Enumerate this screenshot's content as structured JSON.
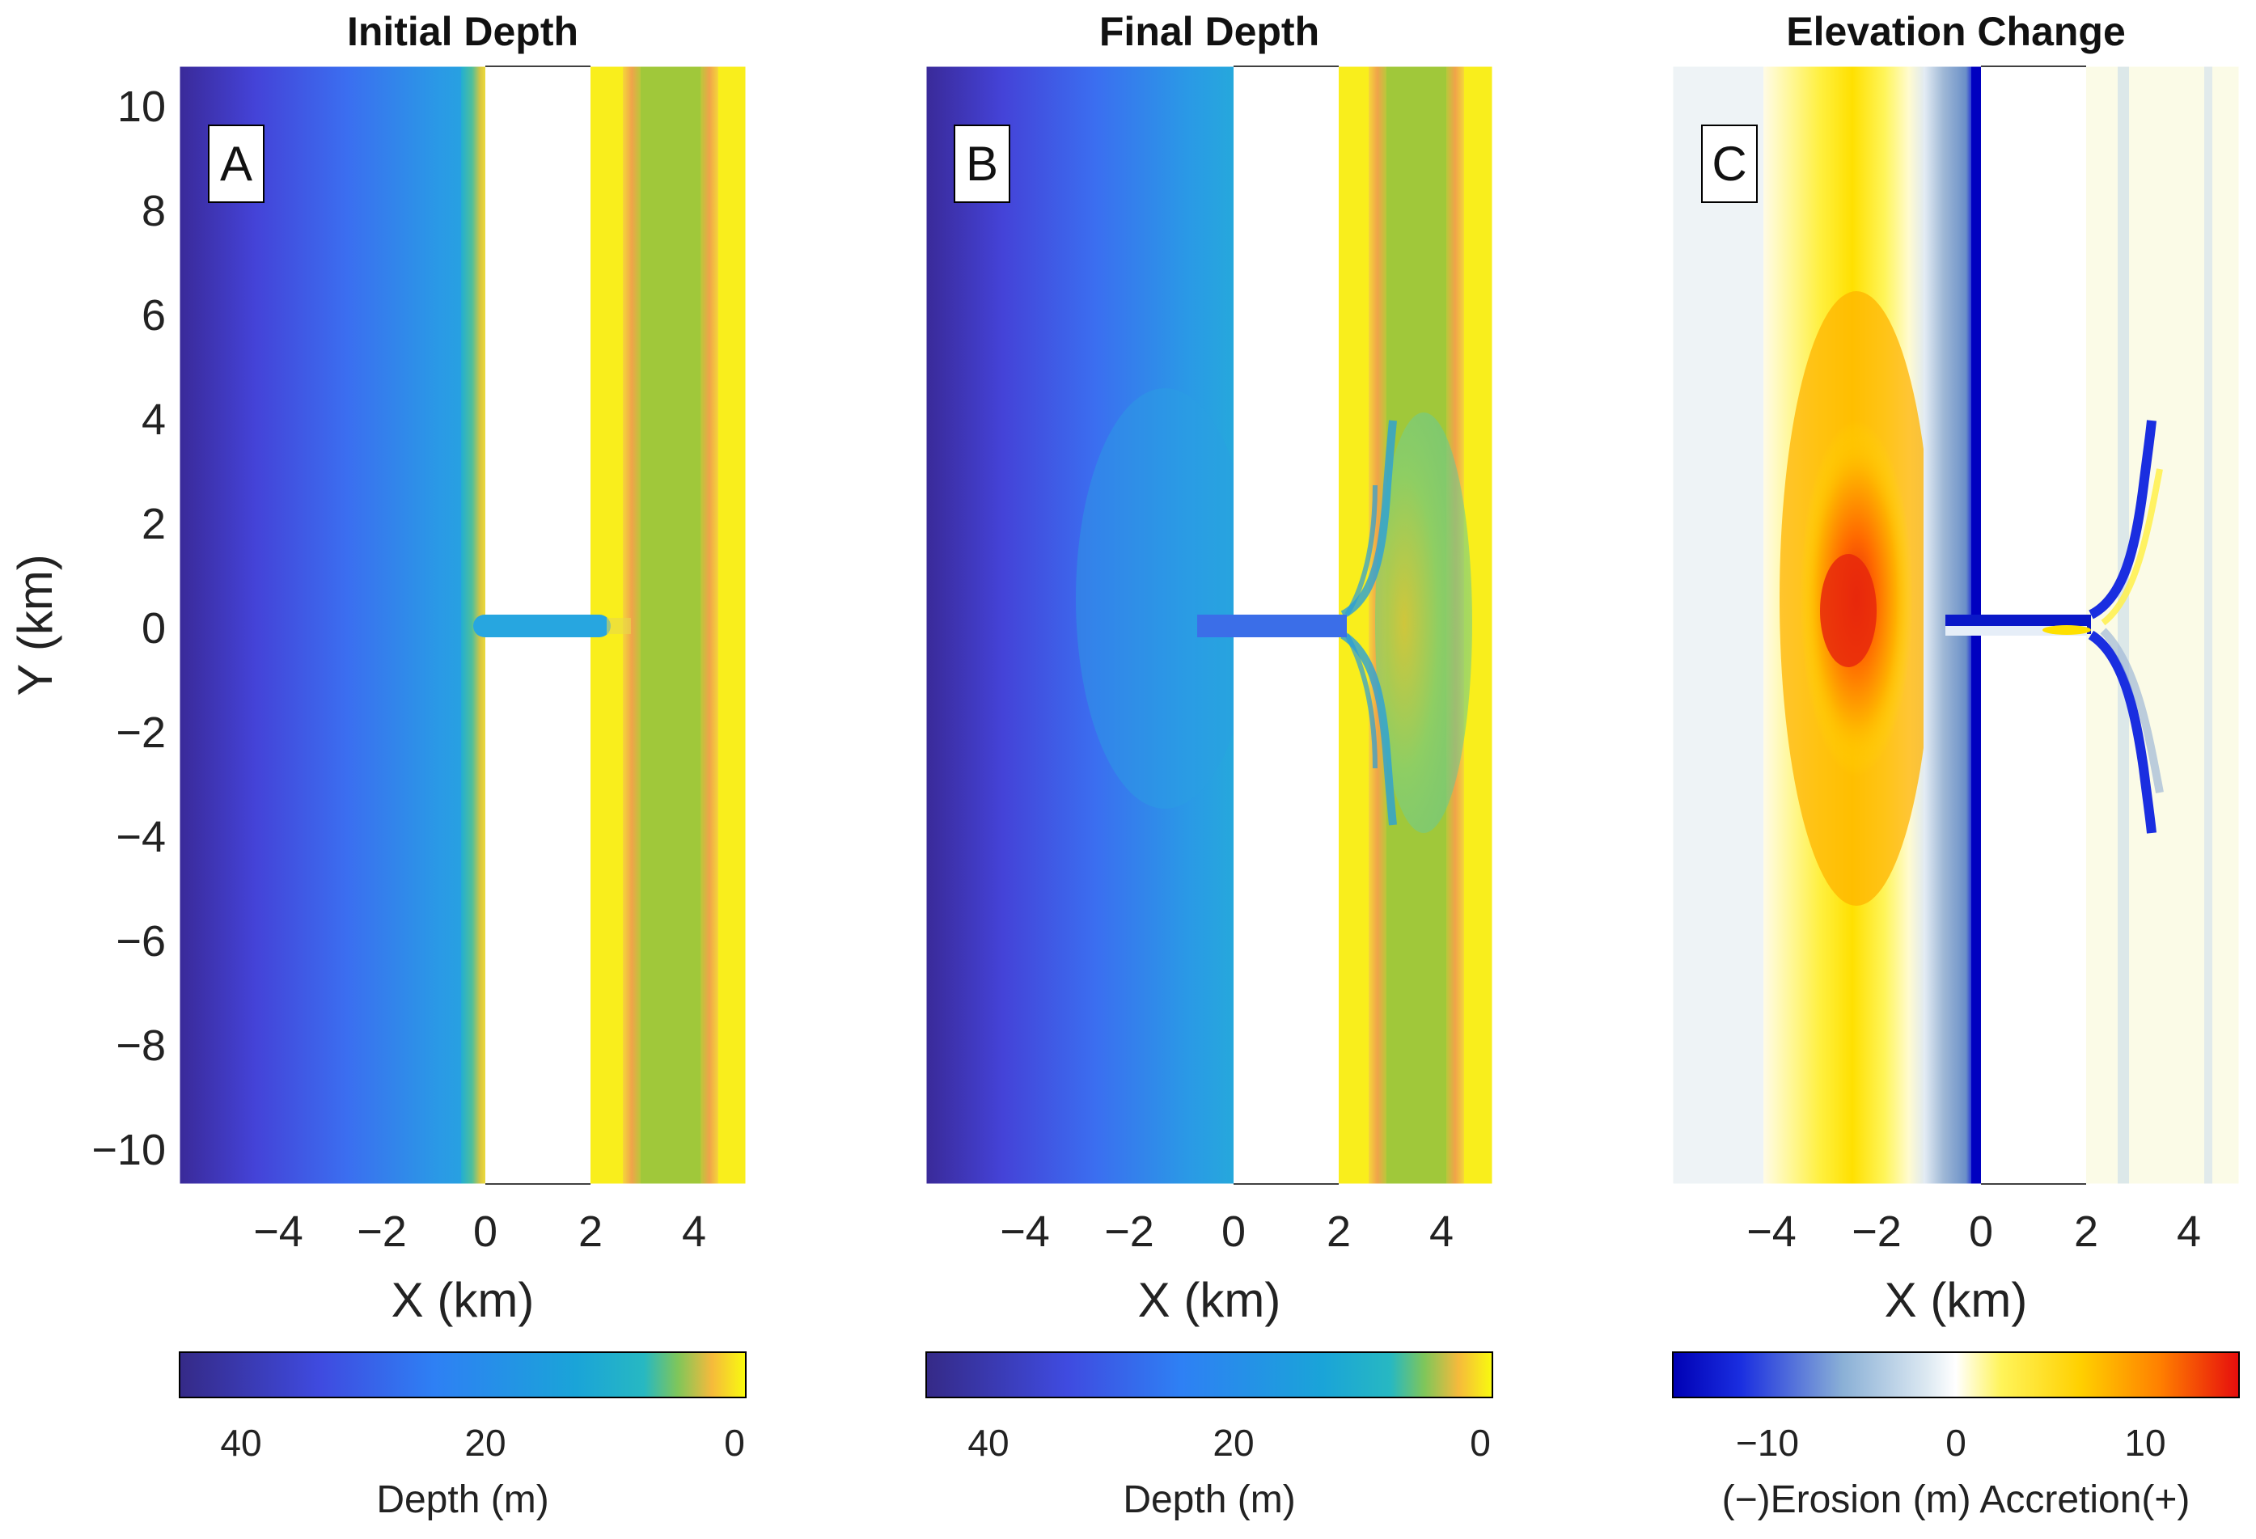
{
  "chart_data": [
    {
      "type": "heatmap",
      "panel": "A",
      "title": "Initial Depth",
      "xlabel": "X (km)",
      "ylabel": "Y (km)",
      "xlim": [
        -6,
        5
      ],
      "ylim": [
        -10.8,
        10.8
      ],
      "xticks": [
        "−4",
        "−2",
        "0",
        "2",
        "4"
      ],
      "yticks": [
        "10",
        "8",
        "6",
        "4",
        "2",
        "0",
        "−2",
        "−4",
        "−6",
        "−8",
        "−10"
      ],
      "colorbar": {
        "label": "Depth (m)",
        "ticks": [
          "40",
          "20",
          "0"
        ],
        "range": [
          45,
          0
        ]
      },
      "bands_km": [
        {
          "x0": -6,
          "x1": -0.4,
          "color_from": "#3a2a99",
          "color_to": "#2aa5dd"
        },
        {
          "x0": -0.4,
          "x1": 0,
          "color_from": "#29b4d2",
          "color_to": "#f5d833"
        },
        {
          "x0": 0,
          "x1": 2,
          "color": "#ffffff"
        },
        {
          "x0": 2,
          "x1": 2.9,
          "color": "#f9ee1c"
        },
        {
          "x0": 2.9,
          "x1": 4.2,
          "color": "#a0c83a"
        },
        {
          "x0": 4.2,
          "x1": 5,
          "color": "#f9ee1c"
        }
      ],
      "channel": {
        "x0": -0.2,
        "x1": 2.3,
        "y": 0,
        "color": "#27a6e0"
      }
    },
    {
      "type": "heatmap",
      "panel": "B",
      "title": "Final Depth",
      "xlabel": "X (km)",
      "ylabel": "",
      "xlim": [
        -6,
        5
      ],
      "ylim": [
        -10.8,
        10.8
      ],
      "xticks": [
        "−4",
        "−2",
        "0",
        "2",
        "4"
      ],
      "colorbar": {
        "label": "Depth (m)",
        "ticks": [
          "40",
          "20",
          "0"
        ],
        "range": [
          45,
          0
        ]
      },
      "bands_km": [
        {
          "x0": -6,
          "x1": 0,
          "color_from": "#3a2a99",
          "color_to": "#2aa5dd"
        },
        {
          "x0": 0,
          "x1": 2,
          "color": "#ffffff"
        },
        {
          "x0": 2,
          "x1": 2.9,
          "color": "#f9ee1c"
        },
        {
          "x0": 2.9,
          "x1": 4.2,
          "color": "#a0c83a"
        },
        {
          "x0": 4.2,
          "x1": 5,
          "color": "#f9ee1c"
        }
      ],
      "channel": {
        "x0": -1.0,
        "x1": 2.1,
        "y": 0,
        "color": "#3b6ee8"
      }
    },
    {
      "type": "heatmap",
      "panel": "C",
      "title": "Elevation Change",
      "xlabel": "X (km)",
      "ylabel": "",
      "xlim": [
        -6,
        5
      ],
      "ylim": [
        -10.8,
        10.8
      ],
      "xticks": [
        "−4",
        "−2",
        "0",
        "2",
        "4"
      ],
      "colorbar": {
        "label": "(−)Erosion  (m)  Accretion(+)",
        "ticks": [
          "−10",
          "0",
          "10"
        ],
        "range": [
          -15,
          15
        ]
      },
      "features": [
        {
          "name": "accretion-band",
          "x_km": -2.2,
          "peak_m": 12
        },
        {
          "name": "erosion-line",
          "x_km": 0,
          "peak_m": -15
        },
        {
          "name": "inlet-erosion",
          "x_km": 2.8,
          "peak_m": -12
        }
      ]
    }
  ],
  "colors": {
    "parula_low": "#352a87",
    "parula_mid": "#1fa3de",
    "parula_high": "#f9fb0e",
    "erosion": "#0000c8",
    "accretion": "#e81a0c"
  }
}
